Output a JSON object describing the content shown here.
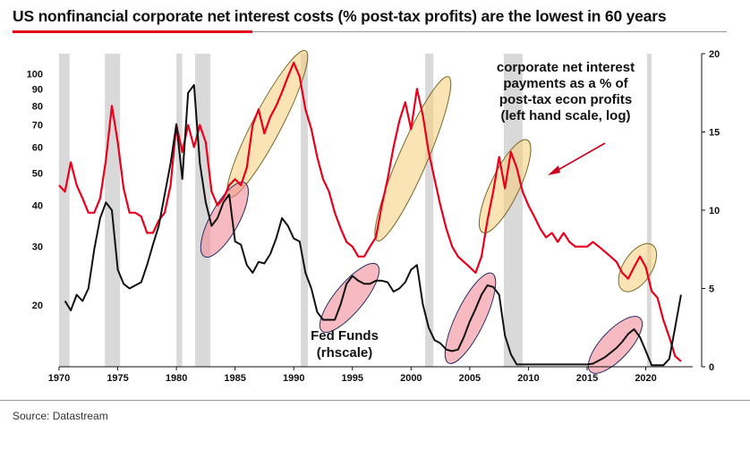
{
  "title": "US nonfinancial corporate net interest costs (% post-tax profits) are the lowest in 60 years",
  "source": "Source: Datastream",
  "chart_data": {
    "type": "line",
    "x_range": [
      1970,
      2024
    ],
    "x_ticks": [
      1970,
      1975,
      1980,
      1985,
      1990,
      1995,
      2000,
      2005,
      2010,
      2015,
      2020
    ],
    "left_axis": {
      "scale": "log",
      "range": [
        13,
        115
      ],
      "ticks": [
        20,
        30,
        40,
        50,
        60,
        70,
        80,
        90,
        100
      ]
    },
    "right_axis": {
      "scale": "linear",
      "range": [
        0,
        20
      ],
      "ticks": [
        0,
        5,
        10,
        15,
        20
      ]
    },
    "recessions": [
      [
        1970.0,
        1970.9
      ],
      [
        1973.9,
        1975.2
      ],
      [
        1980.0,
        1980.5
      ],
      [
        1981.6,
        1982.9
      ],
      [
        1990.6,
        1991.2
      ],
      [
        2001.2,
        2001.9
      ],
      [
        2007.9,
        2009.5
      ],
      [
        2020.1,
        2020.4
      ]
    ],
    "series": [
      {
        "color": "#e8001c",
        "axis": "left",
        "x": [
          1970.0,
          1970.5,
          1971.0,
          1971.5,
          1972.0,
          1972.5,
          1973.0,
          1973.5,
          1974.0,
          1974.5,
          1975.0,
          1975.5,
          1976.0,
          1976.5,
          1977.0,
          1977.5,
          1978.0,
          1978.5,
          1979.0,
          1979.5,
          1980.0,
          1980.5,
          1981.0,
          1981.5,
          1982.0,
          1982.5,
          1983.0,
          1983.5,
          1984.0,
          1984.5,
          1985.0,
          1985.5,
          1986.0,
          1986.5,
          1987.0,
          1987.5,
          1988.0,
          1988.5,
          1989.0,
          1989.5,
          1990.0,
          1990.5,
          1991.0,
          1991.5,
          1992.0,
          1992.5,
          1993.0,
          1993.5,
          1994.0,
          1994.5,
          1995.0,
          1995.5,
          1996.0,
          1996.5,
          1997.0,
          1997.5,
          1998.0,
          1998.5,
          1999.0,
          1999.5,
          2000.0,
          2000.5,
          2001.0,
          2001.5,
          2002.0,
          2002.5,
          2003.0,
          2003.5,
          2004.0,
          2004.5,
          2005.0,
          2005.5,
          2006.0,
          2006.5,
          2007.0,
          2007.5,
          2008.0,
          2008.5,
          2009.0,
          2009.5,
          2010.0,
          2010.5,
          2011.0,
          2011.5,
          2012.0,
          2012.5,
          2013.0,
          2013.5,
          2014.0,
          2014.5,
          2015.0,
          2015.5,
          2016.0,
          2016.5,
          2017.0,
          2017.5,
          2018.0,
          2018.5,
          2019.0,
          2019.5,
          2020.0,
          2020.5,
          2021.0,
          2021.5,
          2022.0,
          2022.5,
          2023.0
        ],
        "y": [
          46,
          44,
          54,
          46,
          42,
          38,
          38,
          42,
          55,
          80,
          62,
          45,
          38,
          38,
          37,
          33,
          33,
          36,
          38,
          46,
          70,
          58,
          70,
          60,
          70,
          62,
          44,
          40,
          42,
          46,
          48,
          46,
          52,
          70,
          78,
          66,
          74,
          80,
          88,
          98,
          108,
          98,
          78,
          68,
          56,
          48,
          44,
          38,
          34,
          31,
          30,
          28,
          28,
          30,
          32,
          40,
          48,
          60,
          72,
          82,
          68,
          90,
          75,
          58,
          48,
          40,
          34,
          30,
          28,
          27,
          26,
          25,
          28,
          36,
          44,
          56,
          45,
          58,
          52,
          44,
          40,
          37,
          34,
          32,
          33,
          31,
          33,
          31,
          30,
          30,
          30,
          31,
          30,
          29,
          28,
          27,
          25,
          24,
          26,
          28,
          26,
          22,
          21,
          18,
          16,
          14,
          13.5
        ]
      },
      {
        "color": "#111111",
        "axis": "right",
        "x": [
          1970.5,
          1971.0,
          1971.5,
          1972.0,
          1972.5,
          1973.0,
          1973.5,
          1974.0,
          1974.5,
          1975.0,
          1975.5,
          1976.0,
          1976.5,
          1977.0,
          1977.5,
          1978.0,
          1978.5,
          1979.0,
          1979.5,
          1980.0,
          1980.5,
          1981.0,
          1981.5,
          1982.0,
          1982.5,
          1983.0,
          1983.5,
          1984.0,
          1984.5,
          1985.0,
          1985.5,
          1986.0,
          1986.5,
          1987.0,
          1987.5,
          1988.0,
          1988.5,
          1989.0,
          1989.5,
          1990.0,
          1990.5,
          1991.0,
          1991.5,
          1992.0,
          1992.5,
          1993.0,
          1993.5,
          1994.0,
          1994.5,
          1995.0,
          1995.5,
          1996.0,
          1996.5,
          1997.0,
          1997.5,
          1998.0,
          1998.5,
          1999.0,
          1999.5,
          2000.0,
          2000.5,
          2001.0,
          2001.5,
          2002.0,
          2002.5,
          2003.0,
          2003.5,
          2004.0,
          2004.5,
          2005.0,
          2005.5,
          2006.0,
          2006.5,
          2007.0,
          2007.5,
          2008.0,
          2008.5,
          2009.0,
          2015.0,
          2015.5,
          2016.0,
          2016.5,
          2017.0,
          2017.5,
          2018.0,
          2018.5,
          2019.0,
          2019.5,
          2020.0,
          2020.5,
          2021.0,
          2021.5,
          2022.0,
          2022.5,
          2023.0
        ],
        "y": [
          4.2,
          3.6,
          4.6,
          4.2,
          5.0,
          7.5,
          9.5,
          10.5,
          10.0,
          6.2,
          5.3,
          5.0,
          5.2,
          5.4,
          6.5,
          7.8,
          9.0,
          11.0,
          13.0,
          15.5,
          12.0,
          17.5,
          18.0,
          13.0,
          10.5,
          9.0,
          9.5,
          10.5,
          11.0,
          8.0,
          7.8,
          6.5,
          6.0,
          6.7,
          6.6,
          7.2,
          8.2,
          9.5,
          9.0,
          8.2,
          8.0,
          6.0,
          5.0,
          3.5,
          3.0,
          3.0,
          3.0,
          4.0,
          5.3,
          5.8,
          5.5,
          5.3,
          5.3,
          5.5,
          5.5,
          5.4,
          4.8,
          5.0,
          5.4,
          6.2,
          6.5,
          4.0,
          2.5,
          1.7,
          1.5,
          1.1,
          1.0,
          1.1,
          1.9,
          2.9,
          3.7,
          4.6,
          5.2,
          5.1,
          4.6,
          2.0,
          0.8,
          0.15,
          0.15,
          0.2,
          0.4,
          0.6,
          0.9,
          1.2,
          1.6,
          2.1,
          2.4,
          1.9,
          1.0,
          0.1,
          0.1,
          0.1,
          0.5,
          2.5,
          4.6
        ]
      }
    ],
    "annotations": [
      {
        "lines": [
          "corporate net interest",
          "payments as a % of",
          "post-tax econ profits",
          "(left hand scale, log)"
        ]
      },
      {
        "lines": [
          "Fed Funds",
          "(rhscale)"
        ]
      }
    ],
    "highlights_red_series": [
      [
        1984.7,
        1990.8
      ],
      [
        1997.3,
        2003.0
      ],
      [
        2006.3,
        2009.7
      ],
      [
        2018.3,
        2020.3
      ]
    ],
    "highlights_black_series": [
      [
        1982.6,
        1985.6
      ],
      [
        1992.7,
        1996.8
      ],
      [
        2003.4,
        2006.7
      ],
      [
        2015.6,
        2019.2
      ]
    ]
  }
}
